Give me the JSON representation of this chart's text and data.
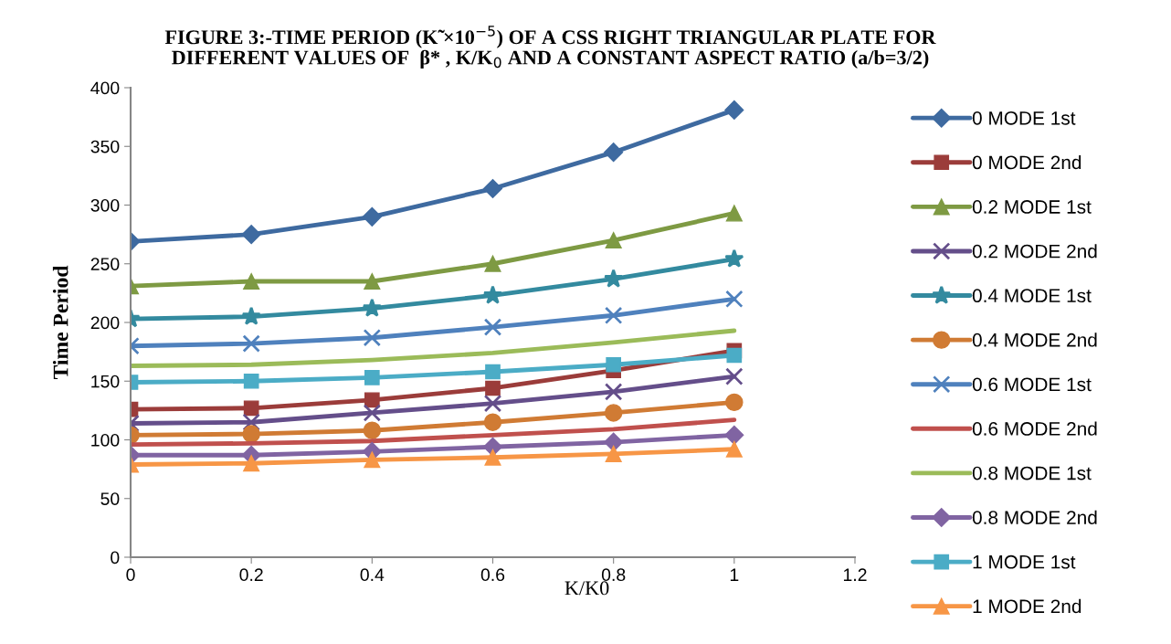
{
  "chart_data": {
    "type": "line",
    "title": "FIGURE 3:-TIME PERIOD (K̃ ×10$^{−5}$) OF A CSS RIGHT TRIANGULAR PLATE FOR\nDIFFERENT VALUES OF  β* , K/K$_{0}$ AND A CONSTANT ASPECT RATIO (a/b=3/2)",
    "xlabel": "K/K0",
    "ylabel": "Time Period",
    "x": [
      0,
      0.2,
      0.4,
      0.6,
      0.8,
      1
    ],
    "series": [
      {
        "name": "0 MODE 1st",
        "color": "#3e6aa0",
        "marker": "diamond",
        "values": [
          269,
          275,
          290,
          314,
          345,
          381
        ]
      },
      {
        "name": "0 MODE 2nd",
        "color": "#9b3c3a",
        "marker": "square",
        "values": [
          126,
          127,
          134,
          144,
          159,
          176
        ]
      },
      {
        "name": "0.2 MODE 1st",
        "color": "#7e9a43",
        "marker": "triangle",
        "values": [
          231,
          235,
          235,
          250,
          270,
          293
        ]
      },
      {
        "name": "0.2 MODE 2nd",
        "color": "#644e8a",
        "marker": "cross",
        "values": [
          114,
          115,
          123,
          131,
          141,
          154
        ]
      },
      {
        "name": "0.4 MODE 1st",
        "color": "#338a9f",
        "marker": "star",
        "values": [
          203,
          205,
          212,
          223,
          237,
          254
        ]
      },
      {
        "name": "0.4 MODE 2nd",
        "color": "#d07b34",
        "marker": "circle",
        "values": [
          104,
          105,
          108,
          115,
          123,
          132
        ]
      },
      {
        "name": "0.6 MODE 1st",
        "color": "#4f81bd",
        "marker": "cross",
        "values": [
          180,
          182,
          187,
          196,
          206,
          220
        ]
      },
      {
        "name": "0.6 MODE 2nd",
        "color": "#c0504d",
        "marker": "none",
        "values": [
          96,
          97,
          99,
          104,
          109,
          117
        ]
      },
      {
        "name": "0.8 MODE 1st",
        "color": "#9bbb59",
        "marker": "none",
        "values": [
          163,
          164,
          168,
          174,
          183,
          193
        ]
      },
      {
        "name": "0.8 MODE 2nd",
        "color": "#8064a2",
        "marker": "diamond",
        "values": [
          87,
          87,
          90,
          94,
          98,
          104
        ]
      },
      {
        "name": "1 MODE 1st",
        "color": "#4bacc6",
        "marker": "square",
        "values": [
          149,
          150,
          153,
          158,
          164,
          172
        ]
      },
      {
        "name": "1 MODE 2nd",
        "color": "#f79646",
        "marker": "triangle",
        "values": [
          79,
          80,
          83,
          85,
          88,
          92
        ]
      }
    ],
    "xlim": [
      0,
      1.2
    ],
    "xticks": [
      0,
      0.2,
      0.4,
      0.6,
      0.8,
      1,
      1.2
    ],
    "ylim": [
      0,
      400
    ],
    "yticks": [
      0,
      50,
      100,
      150,
      200,
      250,
      300,
      350,
      400
    ],
    "grid": false,
    "legend": "right",
    "line_style": "solid"
  }
}
